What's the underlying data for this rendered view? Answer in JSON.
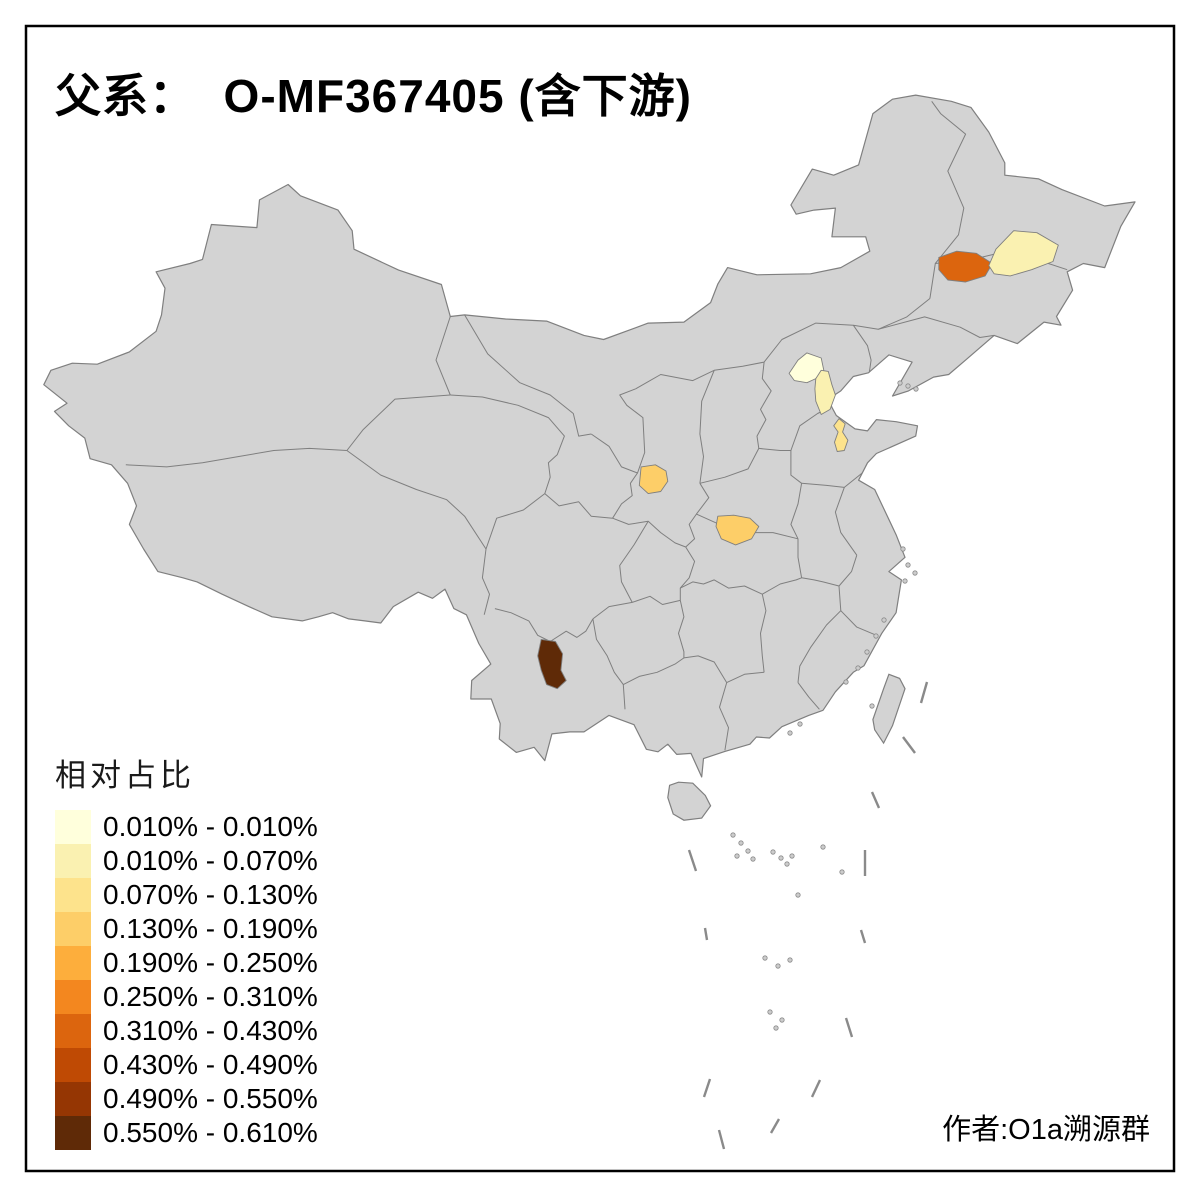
{
  "frame": {
    "title": "父系：  O-MF367405 (含下游)",
    "credit": "作者:O1a溯源群"
  },
  "legend": {
    "title": "相对占比",
    "classes": [
      {
        "label": "0.010% - 0.010%",
        "color": "#FFFFDC"
      },
      {
        "label": "0.010% - 0.070%",
        "color": "#FAF1B1"
      },
      {
        "label": "0.070% - 0.130%",
        "color": "#FDE38C"
      },
      {
        "label": "0.130% - 0.190%",
        "color": "#FDCE68"
      },
      {
        "label": "0.190% - 0.250%",
        "color": "#FDAE3C"
      },
      {
        "label": "0.250% - 0.310%",
        "color": "#F3871F"
      },
      {
        "label": "0.310% - 0.430%",
        "color": "#DC650E"
      },
      {
        "label": "0.430% - 0.490%",
        "color": "#BF4A04"
      },
      {
        "label": "0.490% - 0.550%",
        "color": "#953603"
      },
      {
        "label": "0.550% - 0.610%",
        "color": "#5F2A07"
      }
    ]
  },
  "map": {
    "land_color": "#D3D3D3",
    "border_color": "#7F7F7F",
    "sea_color": "#FFFFFF",
    "frame_color": "#000000",
    "highlighted_regions": [
      {
        "id": "region-1",
        "class_index": 0
      },
      {
        "id": "region-2",
        "class_index": 1
      },
      {
        "id": "region-3",
        "class_index": 2
      },
      {
        "id": "region-4",
        "class_index": 3
      },
      {
        "id": "region-5",
        "class_index": 3
      },
      {
        "id": "region-6",
        "class_index": 6
      },
      {
        "id": "region-7",
        "class_index": 1
      },
      {
        "id": "region-8",
        "class_index": 9
      }
    ]
  }
}
